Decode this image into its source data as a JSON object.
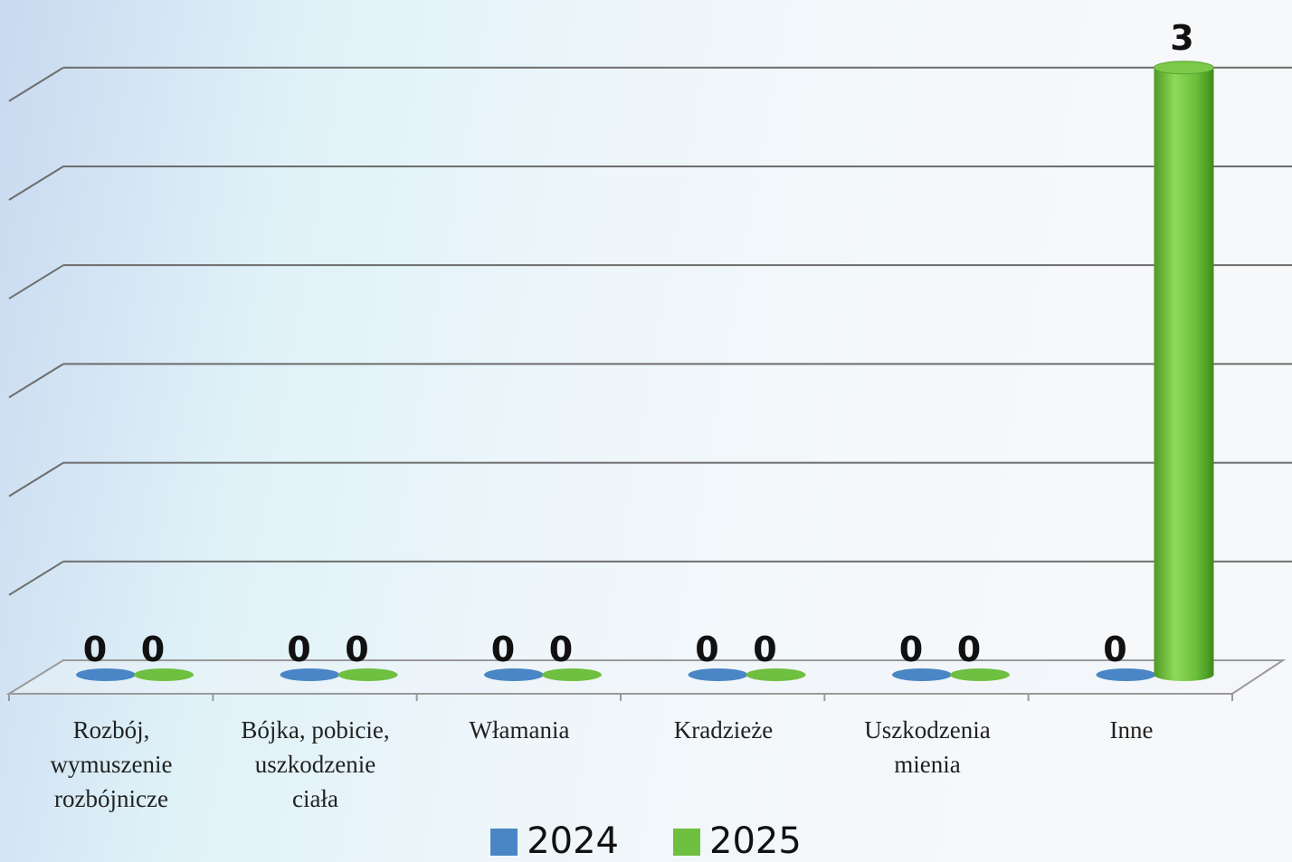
{
  "chart_data": {
    "type": "bar",
    "style": "3d-cylinder",
    "categories": [
      "Rozbój, wymuszenie rozbójnicze",
      "Bójka, pobicie, uszkodzenie ciała",
      "Włamania",
      "Kradzieże",
      "Uszkodzenia mienia",
      "Inne"
    ],
    "series": [
      {
        "name": "2024",
        "color": "#4a86c5",
        "values": [
          0,
          0,
          0,
          0,
          0,
          0
        ]
      },
      {
        "name": "2025",
        "color": "#6fbf40",
        "values": [
          0,
          0,
          0,
          0,
          0,
          3
        ]
      }
    ],
    "ylim": [
      0,
      3.15
    ],
    "grid": true,
    "data_labels": true,
    "legend_position": "bottom"
  },
  "category_lines": [
    [
      "Rozbój,",
      "wymuszenie",
      "rozbójnicze"
    ],
    [
      "Bójka, pobicie,",
      "uszkodzenie",
      "ciała"
    ],
    [
      "Włamania"
    ],
    [
      "Kradzieże"
    ],
    [
      "Uszkodzenia",
      "mienia"
    ],
    [
      "Inne"
    ]
  ]
}
